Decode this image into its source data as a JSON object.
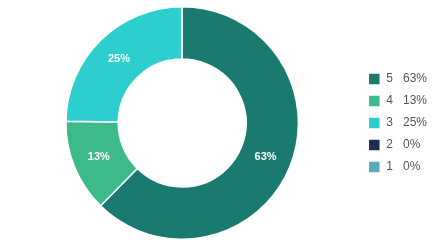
{
  "chart_data": {
    "type": "doughnut",
    "categories": [
      "5   63%",
      "4   13%",
      "3   25%",
      "2   0%",
      "1   0%"
    ],
    "values": [
      63,
      13,
      25,
      0.001,
      0.001
    ],
    "value_labels": [
      "63%",
      "13%",
      "25%",
      null,
      null
    ],
    "colors": [
      "#1a7a70",
      "#3dba8a",
      "#2dcece",
      "#1a2f52",
      "#5aabbb"
    ],
    "data_labels": true,
    "legend": "right"
  }
}
